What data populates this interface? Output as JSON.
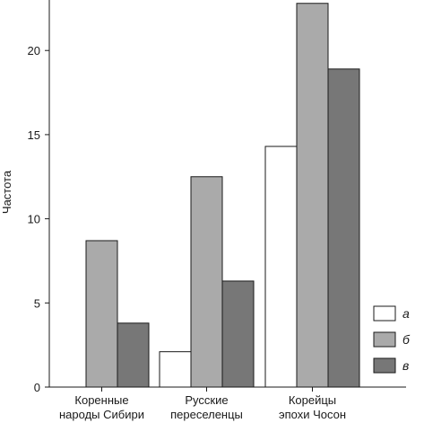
{
  "chart_data": {
    "type": "bar",
    "title": "",
    "xlabel": "",
    "ylabel": "Частота",
    "ylim": [
      0,
      23
    ],
    "yticks": [
      0,
      5,
      10,
      15,
      20
    ],
    "grid": false,
    "legend_position": "bottom-right",
    "categories": [
      [
        "Коренные",
        "народы Сибири"
      ],
      [
        "Русские",
        "переселенцы"
      ],
      [
        "Корейцы",
        "эпохи Чосон"
      ]
    ],
    "series": [
      {
        "name": "а",
        "color": "#ffffff",
        "values": [
          0,
          2.1,
          14.3
        ]
      },
      {
        "name": "б",
        "color": "#aaaaaa",
        "values": [
          8.7,
          12.5,
          22.8
        ]
      },
      {
        "name": "в",
        "color": "#777777",
        "values": [
          3.8,
          6.3,
          18.9
        ]
      }
    ]
  }
}
